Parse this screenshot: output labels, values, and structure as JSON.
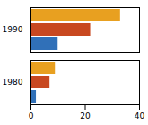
{
  "chart_data": {
    "type": "bar",
    "orientation": "horizontal",
    "categories": [
      "1990",
      "1980"
    ],
    "series": [
      {
        "color": "#E8A020",
        "values": [
          33,
          9
        ]
      },
      {
        "color": "#C84820",
        "values": [
          22,
          7
        ]
      },
      {
        "color": "#3070B8",
        "values": [
          10,
          2
        ]
      }
    ],
    "xlim": [
      0,
      40
    ],
    "xticks": [
      0,
      20,
      40
    ],
    "grid": false
  }
}
